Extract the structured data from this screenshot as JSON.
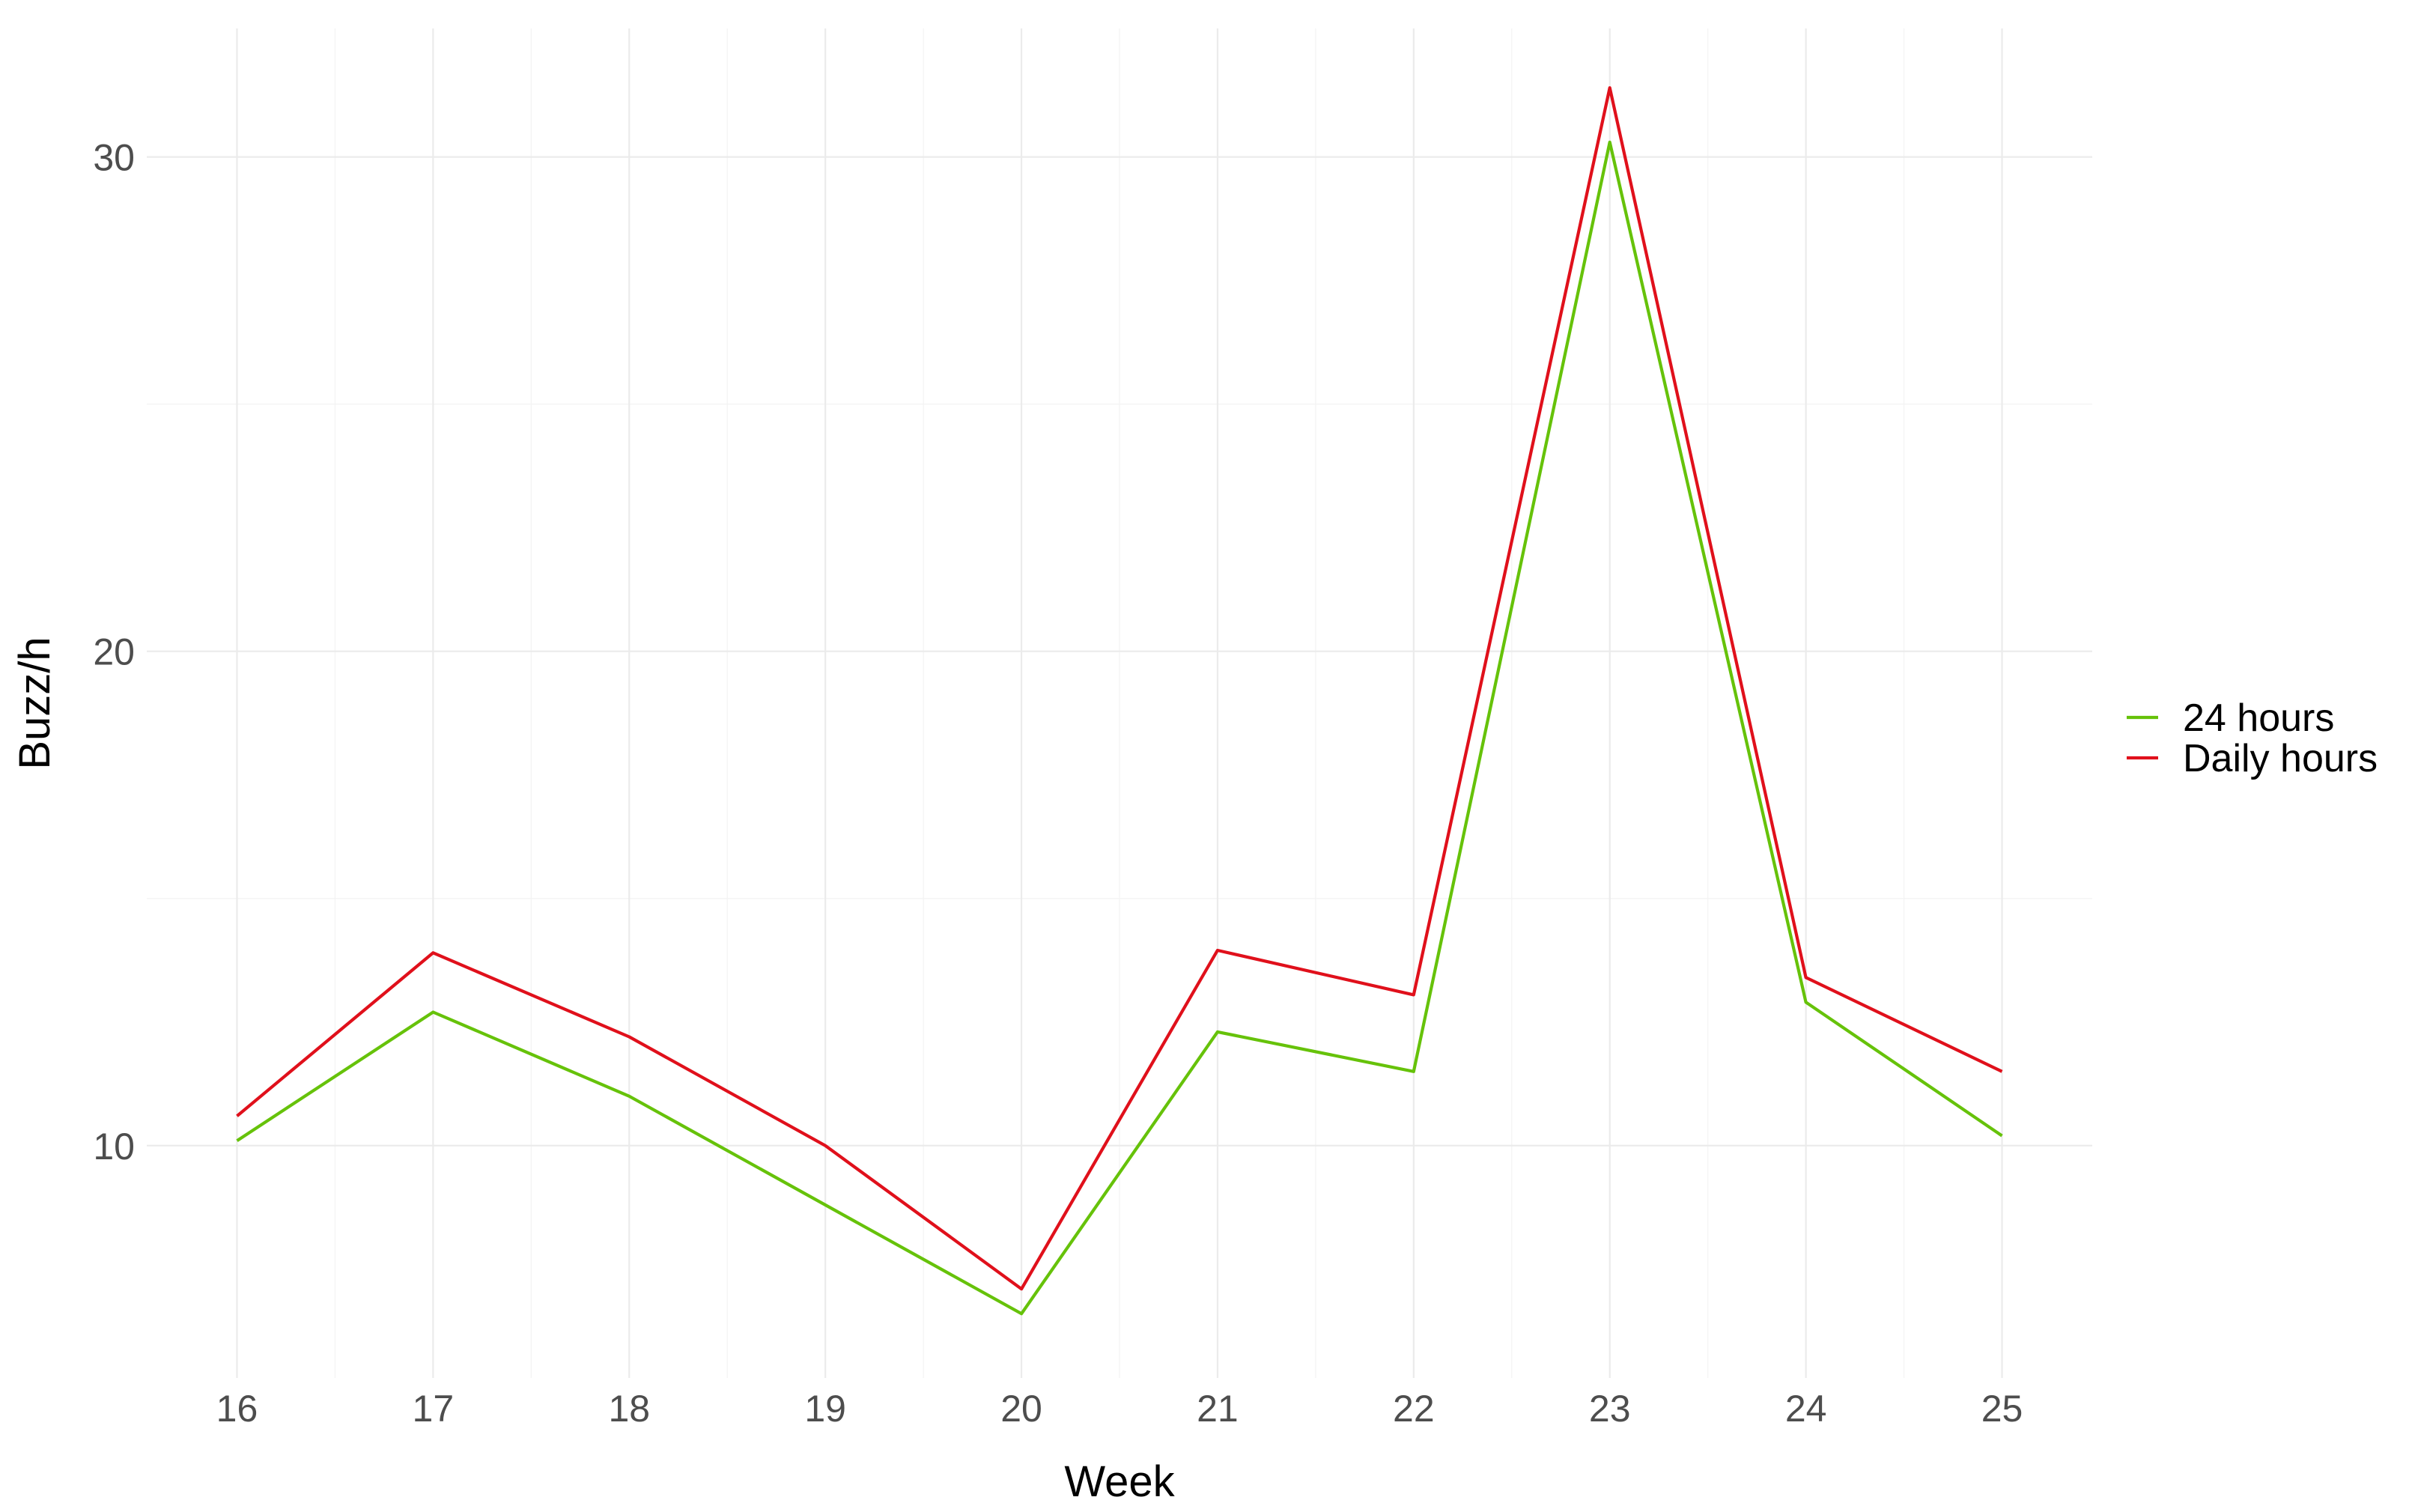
{
  "chart_data": {
    "type": "line",
    "title": "",
    "xlabel": "Week",
    "ylabel": "Buzz/h",
    "x": [
      16,
      17,
      18,
      19,
      20,
      21,
      22,
      23,
      24,
      25
    ],
    "x_tick_labels": [
      "16",
      "17",
      "18",
      "19",
      "20",
      "21",
      "22",
      "23",
      "24",
      "25"
    ],
    "y_tick_labels": [
      "10",
      "20",
      "30"
    ],
    "y_ticks": [
      10,
      20,
      30
    ],
    "xlim": [
      15.54,
      25.46
    ],
    "ylim": [
      5.3,
      32.6
    ],
    "grid": true,
    "legend_position": "right",
    "series": [
      {
        "name": "24 hours",
        "color": "#66c20a",
        "values": [
          10.1,
          12.7,
          11.0,
          8.8,
          6.6,
          12.3,
          11.5,
          30.3,
          12.9,
          10.2
        ]
      },
      {
        "name": "Daily hours",
        "color": "#e0101b",
        "values": [
          10.6,
          13.9,
          12.2,
          10.0,
          7.1,
          13.95,
          13.05,
          31.4,
          13.4,
          11.5
        ]
      }
    ]
  }
}
